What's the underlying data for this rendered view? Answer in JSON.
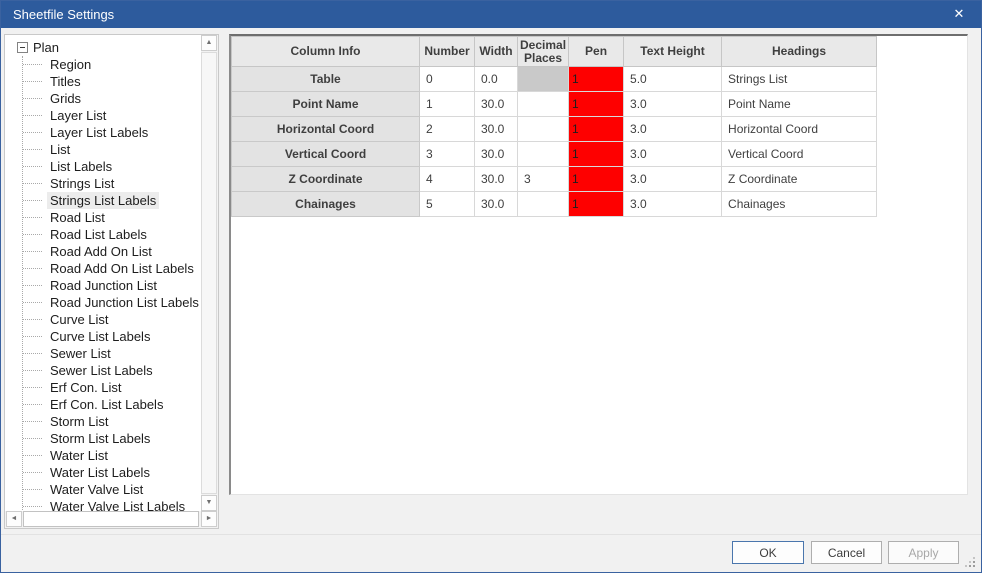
{
  "window": {
    "title": "Sheetfile Settings",
    "title_bar_color": "#2d5b9d",
    "border_color": "#3a62a0"
  },
  "icons": {
    "close_glyph": "✕",
    "scroll_up_glyph": "▲",
    "scroll_down_glyph": "▼",
    "scroll_left_glyph": "◄",
    "scroll_right_glyph": "►"
  },
  "tree": {
    "root": "Plan",
    "selected": "Strings List Labels",
    "items": [
      "Region",
      "Titles",
      "Grids",
      "Layer List",
      "Layer List Labels",
      "List",
      "List Labels",
      "Strings List",
      "Strings List Labels",
      "Road List",
      "Road List Labels",
      "Road Add On List",
      "Road Add On List Labels",
      "Road Junction List",
      "Road Junction List Labels",
      "Curve List",
      "Curve List Labels",
      "Sewer List",
      "Sewer List Labels",
      "Erf Con. List",
      "Erf Con. List Labels",
      "Storm List",
      "Storm List Labels",
      "Water List",
      "Water List Labels",
      "Water Valve List",
      "Water Valve List Labels"
    ]
  },
  "grid": {
    "pen_color": "#fe0000",
    "selected_cell": {
      "row": "Table",
      "column": "Decimal Places"
    },
    "columns": [
      "Column Info",
      "Number",
      "Width",
      "Decimal Places",
      "Pen",
      "Text Height",
      "Headings"
    ],
    "rows": [
      {
        "name": "Table",
        "number": "0",
        "width": "0.0",
        "decimal": "",
        "pen": "1",
        "text_height": "5.0",
        "heading": "Strings List",
        "decimal_selected": true
      },
      {
        "name": "Point Name",
        "number": "1",
        "width": "30.0",
        "decimal": "",
        "pen": "1",
        "text_height": "3.0",
        "heading": "Point Name",
        "decimal_selected": false
      },
      {
        "name": "Horizontal Coord",
        "number": "2",
        "width": "30.0",
        "decimal": "",
        "pen": "1",
        "text_height": "3.0",
        "heading": "Horizontal Coord",
        "decimal_selected": false
      },
      {
        "name": "Vertical Coord",
        "number": "3",
        "width": "30.0",
        "decimal": "",
        "pen": "1",
        "text_height": "3.0",
        "heading": "Vertical Coord",
        "decimal_selected": false
      },
      {
        "name": "Z Coordinate",
        "number": "4",
        "width": "30.0",
        "decimal": "3",
        "pen": "1",
        "text_height": "3.0",
        "heading": "Z Coordinate",
        "decimal_selected": false
      },
      {
        "name": "Chainages",
        "number": "5",
        "width": "30.0",
        "decimal": "",
        "pen": "1",
        "text_height": "3.0",
        "heading": "Chainages",
        "decimal_selected": false
      }
    ]
  },
  "footer": {
    "ok_label": "OK",
    "cancel_label": "Cancel",
    "apply_label": "Apply"
  }
}
